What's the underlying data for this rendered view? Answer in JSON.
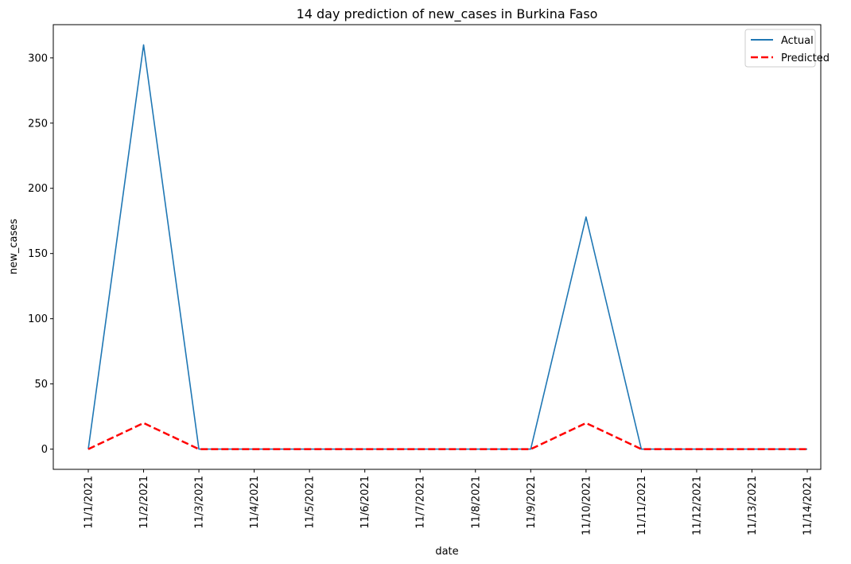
{
  "chart_data": {
    "type": "line",
    "title": "14 day prediction of new_cases in Burkina Faso",
    "xlabel": "date",
    "ylabel": "new_cases",
    "categories": [
      "11/1/2021",
      "11/2/2021",
      "11/3/2021",
      "11/4/2021",
      "11/5/2021",
      "11/6/2021",
      "11/7/2021",
      "11/8/2021",
      "11/9/2021",
      "11/10/2021",
      "11/11/2021",
      "11/12/2021",
      "11/13/2021",
      "11/14/2021"
    ],
    "series": [
      {
        "name": "Actual",
        "values": [
          0,
          310,
          0,
          0,
          0,
          0,
          0,
          0,
          0,
          178,
          0,
          0,
          0,
          0
        ],
        "color": "#1f77b4",
        "style": "solid"
      },
      {
        "name": "Predicted",
        "values": [
          0,
          20,
          0,
          0,
          0,
          0,
          0,
          0,
          0,
          20,
          0,
          0,
          0,
          0
        ],
        "color": "#ff0000",
        "style": "dashed"
      }
    ],
    "ylim": [
      -15.5,
      325.5
    ],
    "yticks": [
      0,
      50,
      100,
      150,
      200,
      250,
      300
    ],
    "grid": false,
    "legend_position": "top-right"
  }
}
